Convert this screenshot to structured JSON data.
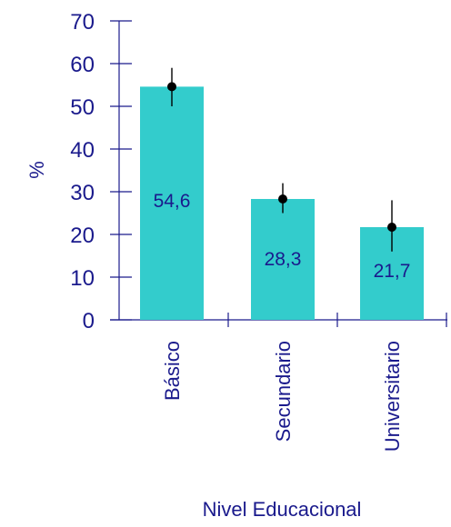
{
  "chart_data": {
    "type": "bar",
    "categories": [
      "Básico",
      "Secundario",
      "Universitario"
    ],
    "values": [
      54.6,
      28.3,
      21.7
    ],
    "value_labels": [
      "54,6",
      "28,3",
      "21,7"
    ],
    "error_bars": [
      {
        "point": 54.6,
        "low": 50,
        "high": 59
      },
      {
        "point": 28.3,
        "low": 25,
        "high": 32
      },
      {
        "point": 21.7,
        "low": 16,
        "high": 28
      }
    ],
    "xlabel": "Nivel Educacional",
    "ylabel": "%",
    "ylim": [
      0,
      70
    ],
    "yticks": [
      0,
      10,
      20,
      30,
      40,
      50,
      60,
      70
    ],
    "grid": false,
    "colors": {
      "bar": "#33cccc",
      "text": "#1a1a8c",
      "axis": "#1a1a8c",
      "error": "#000000"
    }
  }
}
